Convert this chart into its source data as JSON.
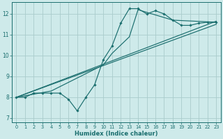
{
  "bg_color": "#ceeaea",
  "grid_color": "#aacccc",
  "line_color": "#1a6e6e",
  "xlabel": "Humidex (Indice chaleur)",
  "xlim": [
    -0.5,
    23.5
  ],
  "ylim": [
    6.8,
    12.55
  ],
  "yticks": [
    7,
    8,
    9,
    10,
    11,
    12
  ],
  "xticks": [
    0,
    1,
    2,
    3,
    4,
    5,
    6,
    7,
    8,
    9,
    10,
    11,
    12,
    13,
    14,
    15,
    16,
    17,
    18,
    19,
    20,
    21,
    22,
    23
  ],
  "line1_x": [
    0,
    1,
    2,
    3,
    4,
    5,
    6,
    7,
    8,
    9,
    10,
    11,
    12,
    13,
    14,
    15,
    16,
    17,
    18,
    19,
    20,
    21,
    22,
    23
  ],
  "line1_y": [
    8.0,
    8.0,
    8.2,
    8.2,
    8.2,
    8.2,
    7.9,
    7.35,
    8.0,
    8.6,
    9.8,
    10.45,
    11.55,
    12.25,
    12.25,
    12.0,
    12.15,
    12.0,
    11.7,
    11.45,
    11.45,
    11.55,
    11.6,
    11.6
  ],
  "line2_x": [
    0,
    4,
    10,
    11,
    13,
    14,
    18,
    23
  ],
  "line2_y": [
    8.0,
    8.3,
    9.55,
    10.1,
    10.9,
    12.2,
    11.7,
    11.6
  ],
  "line3_x": [
    0,
    23
  ],
  "line3_y": [
    8.0,
    11.5
  ],
  "line4_x": [
    0,
    23
  ],
  "line4_y": [
    8.0,
    11.65
  ]
}
